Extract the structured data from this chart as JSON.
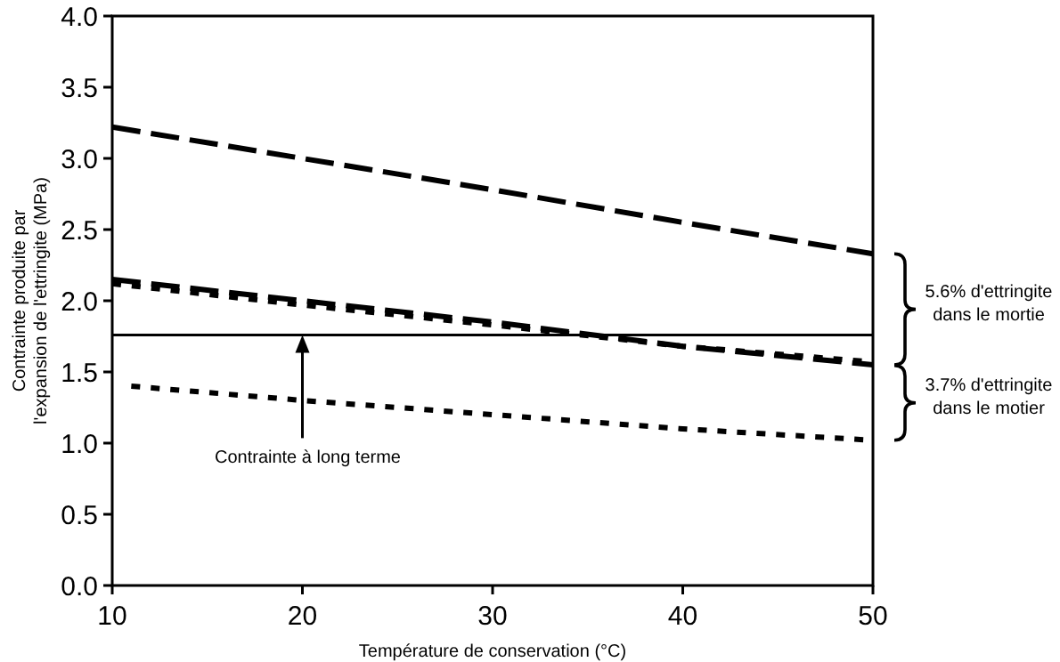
{
  "chart_data": {
    "type": "line",
    "xlabel": "Température de conservation (°C)",
    "ylabel": "Contrainte produite par l'expansion de l'ettringite (MPa)",
    "x": [
      10,
      20,
      30,
      40,
      50
    ],
    "series": [
      {
        "color": "#000000",
        "values": [
          3.22,
          3.0,
          2.78,
          2.55,
          2.33
        ],
        "line_style": "dashed"
      },
      {
        "color": "#000000",
        "values": [
          2.15,
          2.0,
          1.85,
          1.68,
          1.55
        ],
        "line_style": "dashed"
      },
      {
        "color": "#000000",
        "values": [
          2.12,
          1.97,
          1.83,
          1.68,
          1.57
        ],
        "line_style": "dotted"
      },
      {
        "color": "#000000",
        "x": [
          11,
          20,
          30,
          40,
          50
        ],
        "values": [
          1.4,
          1.3,
          1.2,
          1.1,
          1.02
        ],
        "line_style": "dotted"
      }
    ],
    "xlim": [
      10,
      50
    ],
    "xticks": [
      10,
      20,
      30,
      40,
      50
    ],
    "ylim": [
      0,
      4
    ],
    "yticks": [
      {
        "value": 0,
        "label": "0.0"
      },
      {
        "value": 0.5,
        "label": "0.5"
      },
      {
        "value": 1,
        "label": "1.0"
      },
      {
        "value": 1.5,
        "label": "1.5"
      },
      {
        "value": 2,
        "label": "2.0"
      },
      {
        "value": 2.5,
        "label": "2.5"
      },
      {
        "value": 3,
        "label": "3.0"
      },
      {
        "value": 3.5,
        "label": "3.5"
      },
      {
        "value": 4,
        "label": "4.0"
      }
    ],
    "ref_lines": [
      {
        "axis": "y",
        "value": 1.76,
        "label": "Contrainte à long terme",
        "color": "#000000",
        "line_style": "solid"
      }
    ],
    "annotations": [
      "5.6% d'ettringite dans le mortie",
      "3.7% d'ettringite dans le motier"
    ],
    "grid": false,
    "marker": "none"
  }
}
